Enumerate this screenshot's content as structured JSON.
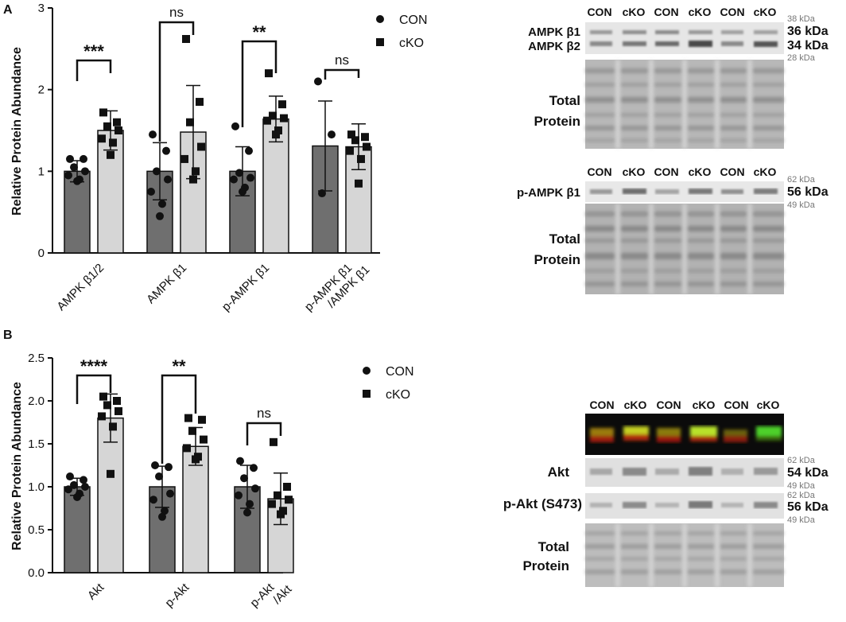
{
  "colors": {
    "con_bar": "#6f6f6f",
    "cko_bar": "#d6d6d6",
    "axis": "#111111",
    "marker": "#111111"
  },
  "chart_data": [
    {
      "type": "bar",
      "panel": "A",
      "title": "",
      "xlabel": "",
      "ylabel": "Relative Protein Abundance",
      "ylim": [
        0,
        3
      ],
      "yticks": [
        "0",
        "1",
        "2",
        "3"
      ],
      "categories": [
        "AMPK β1/2",
        "AMPK β1",
        "p-AMPK β1",
        "p-AMPK β1\n/AMPK β1"
      ],
      "legend": [
        "CON",
        "cKO"
      ],
      "legend_position": "top-right",
      "series": [
        {
          "name": "CON",
          "marker": "circle",
          "values": [
            1.0,
            1.0,
            1.0,
            1.31
          ],
          "errors": [
            0.13,
            0.35,
            0.3,
            0.55
          ],
          "points": [
            [
              1.15,
              1.15,
              1.05,
              1.0,
              0.95,
              0.9,
              0.88
            ],
            [
              1.45,
              1.25,
              1.0,
              0.9,
              0.75,
              0.6,
              0.45
            ],
            [
              1.55,
              1.25,
              0.98,
              0.92,
              0.9,
              0.8,
              0.75
            ],
            [
              2.1,
              1.45,
              0.73
            ]
          ]
        },
        {
          "name": "cKO",
          "marker": "square",
          "values": [
            1.5,
            1.48,
            1.64,
            1.3
          ],
          "errors": [
            0.24,
            0.57,
            0.28,
            0.28
          ],
          "points": [
            [
              1.72,
              1.6,
              1.55,
              1.5,
              1.4,
              1.35,
              1.2
            ],
            [
              2.62,
              1.85,
              1.6,
              1.3,
              1.15,
              1.0,
              0.9
            ],
            [
              2.2,
              1.82,
              1.68,
              1.65,
              1.62,
              1.5,
              1.45
            ],
            [
              1.45,
              1.42,
              1.38,
              1.3,
              1.25,
              1.15,
              0.85
            ]
          ]
        }
      ],
      "annotations": [
        "***",
        "ns",
        "**",
        "ns"
      ]
    },
    {
      "type": "bar",
      "panel": "B",
      "title": "",
      "xlabel": "",
      "ylabel": "Relative Protein Abundance",
      "ylim": [
        0,
        2.5
      ],
      "yticks": [
        "0.0",
        "0.5",
        "1.0",
        "1.5",
        "2.0",
        "2.5"
      ],
      "categories": [
        "Akt",
        "p-Akt",
        "p-Akt\n/Akt"
      ],
      "legend": [
        "CON",
        "cKO"
      ],
      "legend_position": "top-right",
      "series": [
        {
          "name": "CON",
          "marker": "circle",
          "values": [
            1.0,
            1.0,
            1.0
          ],
          "errors": [
            0.1,
            0.24,
            0.25
          ],
          "points": [
            [
              1.12,
              1.08,
              1.02,
              1.0,
              0.97,
              0.92,
              0.88
            ],
            [
              1.25,
              1.23,
              1.12,
              0.92,
              0.85,
              0.72,
              0.65
            ],
            [
              1.3,
              1.22,
              1.1,
              0.98,
              0.9,
              0.8,
              0.7
            ]
          ]
        },
        {
          "name": "cKO",
          "marker": "square",
          "values": [
            1.8,
            1.47,
            0.86
          ],
          "errors": [
            0.28,
            0.22,
            0.3
          ],
          "points": [
            [
              2.05,
              2.0,
              1.95,
              1.88,
              1.82,
              1.7,
              1.15
            ],
            [
              1.8,
              1.78,
              1.65,
              1.55,
              1.45,
              1.35,
              1.32
            ],
            [
              1.52,
              1.0,
              0.9,
              0.85,
              0.8,
              0.72,
              0.68
            ]
          ]
        }
      ],
      "annotations": [
        "****",
        "**",
        "ns"
      ]
    }
  ],
  "panels": {
    "a_letter": "A",
    "b_letter": "B"
  },
  "blots": {
    "lane_labels": [
      "CON",
      "cKO",
      "CON",
      "cKO",
      "CON",
      "cKO"
    ],
    "ampk": {
      "beta1": "AMPK β1",
      "beta2": "AMPK β2",
      "kda_38": "38 kDa",
      "kda_36": "36 kDa",
      "kda_34": "34 kDa",
      "kda_28": "28 kDa",
      "total_1": "Total",
      "total_2": "Protein"
    },
    "pampk": {
      "label": "p-AMPK β1",
      "kda_62": "62 kDa",
      "kda_56": "56 kDa",
      "kda_49": "49 kDa",
      "total_1": "Total",
      "total_2": "Protein"
    },
    "akt": {
      "akt_label": "Akt",
      "pakt_label": "p-Akt (S473)",
      "kda_62a": "62 kDa",
      "kda_54": "54 kDa",
      "kda_49a": "49 kDa",
      "kda_62b": "62 kDa",
      "kda_56": "56 kDa",
      "kda_49b": "49 kDa",
      "total_1": "Total",
      "total_2": "Protein"
    }
  }
}
